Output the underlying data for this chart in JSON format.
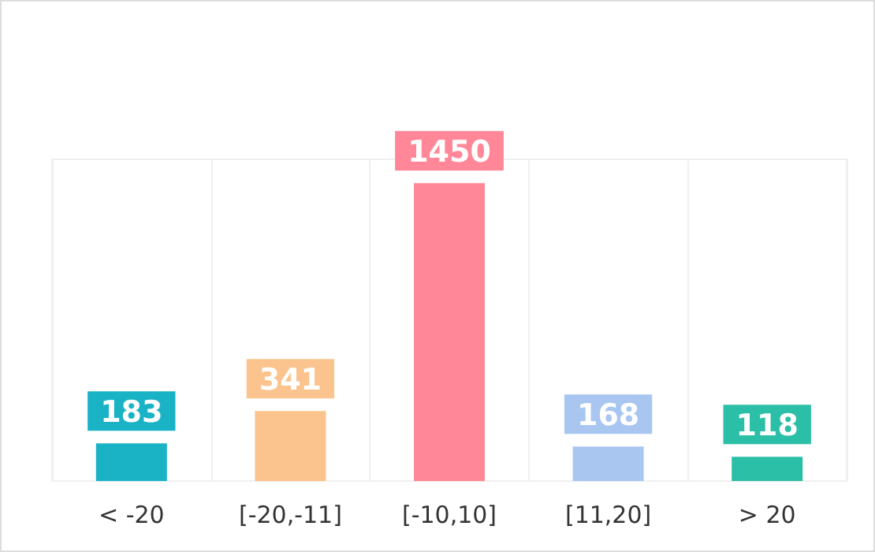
{
  "chart_data": {
    "type": "bar",
    "categories": [
      "< -20",
      "[-20,-11]",
      "[-10,10]",
      "[11,20]",
      "> 20"
    ],
    "values": [
      183,
      341,
      1450,
      168,
      118
    ],
    "colors": [
      "#1ab3c6",
      "#fbc48e",
      "#ff8797",
      "#a8c6f0",
      "#2cbfa8"
    ],
    "data_labels": true,
    "grid": "x"
  }
}
